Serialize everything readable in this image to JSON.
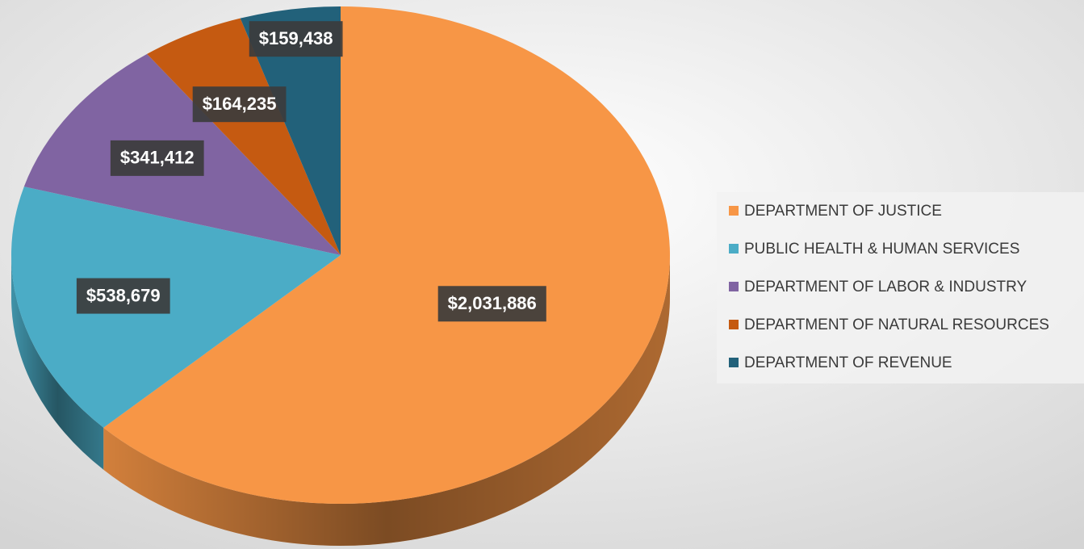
{
  "chart_data": {
    "type": "pie",
    "categories": [
      "DEPARTMENT OF JUSTICE",
      "PUBLIC HEALTH & HUMAN SERVICES",
      "DEPARTMENT OF LABOR & INDUSTRY",
      "DEPARTMENT OF NATURAL RESOURCES",
      "DEPARTMENT OF REVENUE"
    ],
    "values": [
      2031886,
      538679,
      341412,
      164235,
      159438
    ],
    "value_labels": [
      "$2,031,886",
      "$538,679",
      "$341,412",
      "$164,235",
      "$159,438"
    ],
    "colors": [
      "#f79646",
      "#4bacc6",
      "#8064a2",
      "#c55a11",
      "#22617a"
    ],
    "legend": "right"
  }
}
